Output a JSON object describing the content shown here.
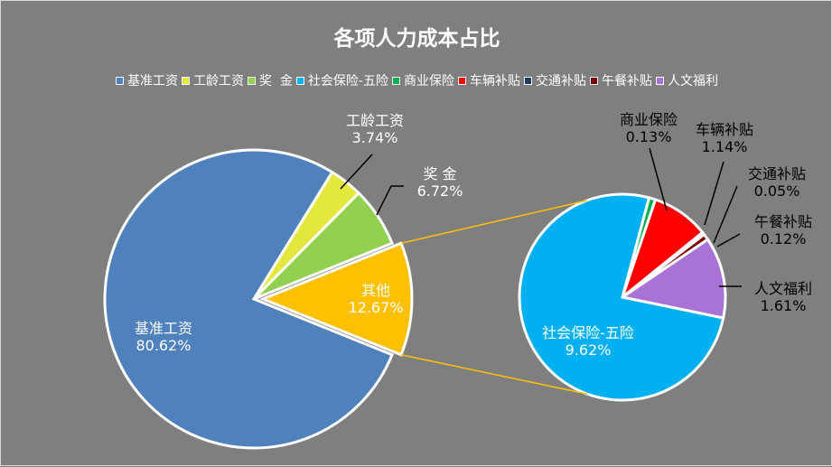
{
  "chart_data": {
    "type": "pie",
    "subtype": "pie-of-pie",
    "title": "各项人力成本占比",
    "legend_position": "top",
    "main_pie": [
      {
        "label": "基准工资",
        "value": 80.62,
        "pct": "80.62%",
        "color": "#4f81bd"
      },
      {
        "label": "工龄工资",
        "value": 3.74,
        "pct": "3.74%",
        "color": "#e5e83c"
      },
      {
        "label": "奖  金",
        "value": 6.72,
        "pct": "6.72%",
        "color": "#92d050"
      },
      {
        "label": "其他",
        "value": 12.67,
        "pct": "12.67%",
        "color": "#ffc000"
      }
    ],
    "secondary_pie": [
      {
        "label": "社会保险-五险",
        "value": 9.62,
        "pct": "9.62%",
        "color": "#00b0f0"
      },
      {
        "label": "商业保险",
        "value": 0.13,
        "pct": "0.13%",
        "color": "#00b050"
      },
      {
        "label": "车辆补贴",
        "value": 1.14,
        "pct": "1.14%",
        "color": "#ff0000"
      },
      {
        "label": "交通补贴",
        "value": 0.05,
        "pct": "0.05%",
        "color": "#1f3864"
      },
      {
        "label": "午餐补贴",
        "value": 0.12,
        "pct": "0.12%",
        "color": "#7f0000"
      },
      {
        "label": "人文福利",
        "value": 1.61,
        "pct": "1.61%",
        "color": "#a873d4"
      }
    ],
    "legend": [
      {
        "label": "基准工资",
        "color": "#4f81bd"
      },
      {
        "label": "工龄工资",
        "color": "#e5e83c"
      },
      {
        "label": "奖  金",
        "color": "#92d050"
      },
      {
        "label": "社会保险-五险",
        "color": "#00b0f0"
      },
      {
        "label": "商业保险",
        "color": "#00b050"
      },
      {
        "label": "车辆补贴",
        "color": "#ff0000"
      },
      {
        "label": "交通补贴",
        "color": "#1f3864"
      },
      {
        "label": "午餐补贴",
        "color": "#7f0000"
      },
      {
        "label": "人文福利",
        "color": "#a873d4"
      }
    ],
    "connector_color": "#ffc000"
  }
}
